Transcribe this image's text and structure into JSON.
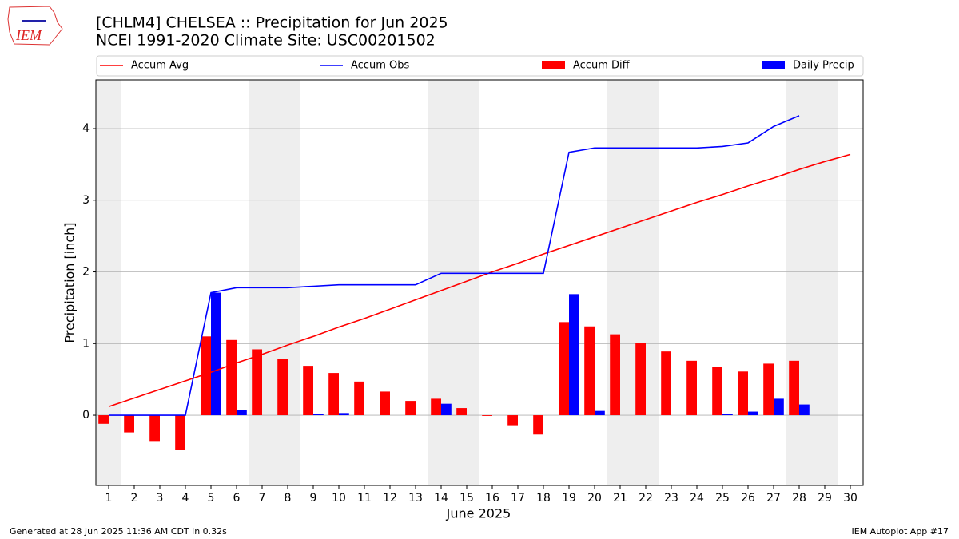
{
  "logo_text": "IEM",
  "footer": {
    "left": "Generated at 28 Jun 2025 11:36 AM CDT in 0.32s",
    "right": "IEM Autoplot App #17"
  },
  "chart_data": {
    "type": "line-bar",
    "title": "[CHLM4] CHELSEA :: Precipitation for Jun 2025",
    "subtitle": "NCEI 1991-2020 Climate Site: USC00201502",
    "x_label": "June 2025",
    "y_label": "Precipitation [inch]",
    "x": [
      1,
      2,
      3,
      4,
      5,
      6,
      7,
      8,
      9,
      10,
      11,
      12,
      13,
      14,
      15,
      16,
      17,
      18,
      19,
      20,
      21,
      22,
      23,
      24,
      25,
      26,
      27,
      28,
      29,
      30
    ],
    "xlim": [
      0.5,
      30.5
    ],
    "xticks": [
      1,
      2,
      3,
      4,
      5,
      6,
      7,
      8,
      9,
      10,
      11,
      12,
      13,
      14,
      15,
      16,
      17,
      18,
      19,
      20,
      21,
      22,
      23,
      24,
      25,
      26,
      27,
      28,
      29,
      30
    ],
    "ylim": [
      -0.98,
      4.68
    ],
    "yticks": [
      0,
      1,
      2,
      3,
      4
    ],
    "grid": true,
    "legend": "top",
    "shaded_days": [
      1,
      7,
      8,
      14,
      15,
      21,
      22,
      28,
      29
    ],
    "shade_color": "#eeeeee",
    "series": [
      {
        "name": "Accum Avg",
        "kind": "line",
        "color": "#ff0000",
        "values": [
          0.12,
          0.24,
          0.36,
          0.48,
          0.6,
          0.73,
          0.85,
          0.98,
          1.1,
          1.23,
          1.35,
          1.48,
          1.61,
          1.74,
          1.87,
          2.0,
          2.12,
          2.25,
          2.37,
          2.49,
          2.61,
          2.73,
          2.85,
          2.97,
          3.08,
          3.2,
          3.31,
          3.43,
          3.54,
          3.64
        ]
      },
      {
        "name": "Accum Obs",
        "kind": "line",
        "color": "#0000ff",
        "values": [
          0,
          0,
          0,
          0,
          1.71,
          1.78,
          1.78,
          1.78,
          1.8,
          1.82,
          1.82,
          1.82,
          1.82,
          1.98,
          1.98,
          1.98,
          1.98,
          1.98,
          3.67,
          3.73,
          3.73,
          3.73,
          3.73,
          3.73,
          3.75,
          3.8,
          4.03,
          4.18,
          null,
          null
        ]
      },
      {
        "name": "Accum Diff",
        "kind": "bar",
        "color": "#ff0000",
        "values": [
          -0.12,
          -0.24,
          -0.36,
          -0.48,
          1.1,
          1.05,
          0.92,
          0.79,
          0.69,
          0.59,
          0.47,
          0.33,
          0.2,
          0.23,
          0.1,
          -0.01,
          -0.14,
          -0.27,
          1.3,
          1.24,
          1.13,
          1.01,
          0.89,
          0.76,
          0.67,
          0.61,
          0.72,
          0.76,
          null,
          null
        ]
      },
      {
        "name": "Daily Precip",
        "kind": "bar",
        "color": "#0000ff",
        "values": [
          0,
          0,
          0,
          0,
          1.71,
          0.07,
          0,
          0,
          0.02,
          0.03,
          0,
          0,
          0,
          0.16,
          0,
          0,
          0,
          0,
          1.69,
          0.06,
          0,
          0,
          0,
          0,
          0.02,
          0.05,
          0.23,
          0.15,
          null,
          null
        ]
      }
    ]
  }
}
